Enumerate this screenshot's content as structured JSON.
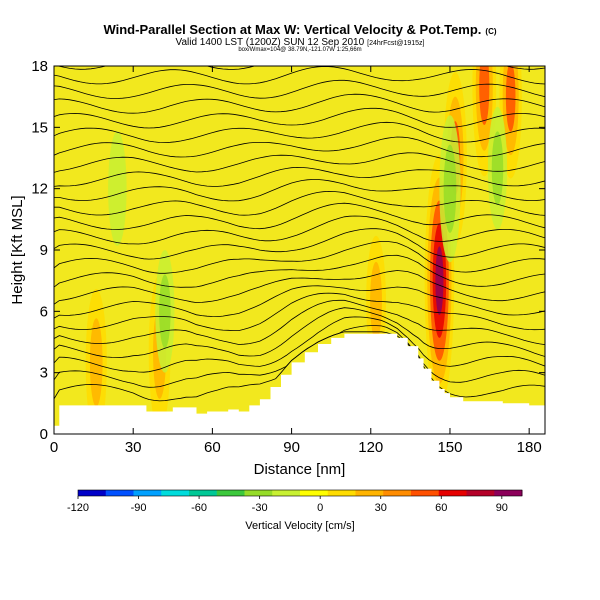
{
  "header": {
    "title": "Wind-Parallel Section at Max W: Vertical Velocity & Pot.Temp.",
    "copyright": "(C)",
    "subtitle": "Valid 1400 LST (1200Z) SUN 12 Sep 2010",
    "subtitle_tag": "[24hrFcst@1915z]",
    "subtitle2": "box/Wmax=104@ 38.79N,-121.07W  1:25,66m"
  },
  "colors": {
    "background": "#ffffff",
    "terrain": "#ffffff",
    "contour": "#000000",
    "field_base": "#f2e81e",
    "colorbar": [
      "#0000c8",
      "#0050ff",
      "#00a0ff",
      "#00dcdc",
      "#00c896",
      "#3cc83c",
      "#96dc28",
      "#c8f032",
      "#ffff00",
      "#ffdc00",
      "#ffb400",
      "#ff8c00",
      "#ff5000",
      "#e60000",
      "#b40028",
      "#8c005a"
    ]
  },
  "chart_data": {
    "type": "heatmap",
    "title": "Wind-Parallel Section at Max W: Vertical Velocity & Pot.Temp.",
    "xlabel": "Distance [nm]",
    "ylabel": "Height [Kft MSL]",
    "xlim": [
      0,
      186
    ],
    "ylim": [
      0,
      18
    ],
    "xticks": [
      0,
      30,
      60,
      90,
      120,
      150,
      180
    ],
    "yticks": [
      0,
      3,
      6,
      9,
      12,
      15,
      18
    ],
    "colorbar": {
      "label": "Vertical Velocity [cm/s]",
      "range": [
        -120,
        100
      ],
      "ticks": [
        -120,
        -90,
        -60,
        -30,
        0,
        30,
        60,
        90
      ]
    },
    "terrain_profile": {
      "x": [
        0,
        2,
        6,
        10,
        20,
        30,
        35,
        40,
        45,
        50,
        54,
        58,
        62,
        66,
        70,
        74,
        78,
        82,
        86,
        90,
        95,
        100,
        105,
        110,
        115,
        120,
        125,
        130,
        134,
        138,
        140,
        143,
        146,
        148,
        150,
        155,
        160,
        165,
        170,
        175,
        180,
        186
      ],
      "y": [
        0.4,
        1.4,
        1.4,
        1.4,
        1.4,
        1.4,
        1.1,
        1.1,
        1.3,
        1.3,
        1.0,
        1.1,
        1.1,
        1.2,
        1.1,
        1.4,
        1.7,
        2.3,
        2.9,
        3.5,
        4.0,
        4.4,
        4.7,
        4.9,
        4.9,
        4.9,
        4.9,
        4.7,
        4.3,
        3.7,
        3.2,
        2.6,
        2.2,
        2.0,
        1.8,
        1.6,
        1.6,
        1.6,
        1.5,
        1.5,
        1.4,
        1.2
      ]
    },
    "updraft_cores": [
      {
        "x": 146,
        "y": 7.5,
        "w_cms": 104
      },
      {
        "x": 152,
        "y": 13.5,
        "w_cms": 55
      },
      {
        "x": 163,
        "y": 17.0,
        "w_cms": 60
      },
      {
        "x": 173,
        "y": 16.5,
        "w_cms": 50
      },
      {
        "x": 16,
        "y": 3.5,
        "w_cms": 40
      },
      {
        "x": 40,
        "y": 4.0,
        "w_cms": 45
      },
      {
        "x": 122,
        "y": 6.5,
        "w_cms": 30
      }
    ],
    "downdraft_cores": [
      {
        "x": 150,
        "y": 12,
        "w_cms": -40
      },
      {
        "x": 168,
        "y": 13,
        "w_cms": -25
      },
      {
        "x": 42,
        "y": 6,
        "w_cms": -25
      },
      {
        "x": 24,
        "y": 12,
        "w_cms": -20
      }
    ],
    "theta_contour_levels": 24
  }
}
